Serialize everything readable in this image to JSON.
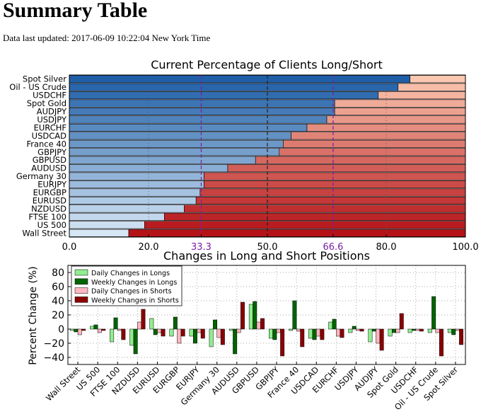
{
  "page": {
    "title": "Summary Table",
    "updated": "Data last updated: 2017-06-09 10:22:04 New York Time"
  },
  "chart_data": [
    {
      "type": "bar",
      "orientation": "horizontal-stacked",
      "title": "Current Percentage of Clients Long/Short",
      "categories": [
        "Spot Silver",
        "Oil - US Crude",
        "USDCHF",
        "Spot Gold",
        "AUDJPY",
        "USDJPY",
        "EURCHF",
        "USDCAD",
        "France 40",
        "GBPJPY",
        "GBPUSD",
        "AUDUSD",
        "Germany 30",
        "EURJPY",
        "EURGBP",
        "EURUSD",
        "NZDUSD",
        "FTSE 100",
        "US 500",
        "Wall Street"
      ],
      "long_values": [
        86,
        83,
        78,
        67,
        67,
        65,
        60,
        56,
        54,
        53,
        47,
        40,
        34,
        34,
        33,
        32,
        29,
        24,
        19,
        15
      ],
      "xlim": [
        0,
        100
      ],
      "xticks": [
        "0.0",
        "20.0",
        "33.3",
        "50.0",
        "66.6",
        "80.0",
        "100.0"
      ],
      "reference_lines": [
        33.3,
        50,
        66.6
      ],
      "grid": true
    },
    {
      "type": "bar",
      "title": "Changes in Long and Short Positions",
      "ylabel": "Percent Change (%)",
      "ylim": [
        -50,
        90
      ],
      "yticks": [
        "80",
        "60",
        "40",
        "20",
        "0",
        "−20",
        "−40"
      ],
      "categories": [
        "Wall Street",
        "US 500",
        "FTSE 100",
        "NZDUSD",
        "EURUSD",
        "EURGBP",
        "EURJPY",
        "Germany 30",
        "AUDUSD",
        "GBPUSD",
        "GBPJPY",
        "France 40",
        "USDCAD",
        "EURCHF",
        "USDJPY",
        "AUDJPY",
        "Spot Gold",
        "USDCHF",
        "Oil - US Crude",
        "Spot Silver"
      ],
      "legend_position": "upper-left",
      "series": [
        {
          "name": "Daily Changes in Longs",
          "color": "#90ee90",
          "values": [
            -2,
            4,
            -18,
            -23,
            15,
            -10,
            -10,
            -25,
            -2,
            35,
            -13,
            -2,
            -13,
            10,
            -5,
            -18,
            -10,
            -5,
            -5,
            -5
          ]
        },
        {
          "name": "Weekly Changes in Longs",
          "color": "#006400",
          "values": [
            -4,
            6,
            16,
            -35,
            -8,
            17,
            -20,
            13,
            -35,
            39,
            -15,
            40,
            -15,
            14,
            4,
            -3,
            -5,
            -2,
            46,
            -8
          ]
        },
        {
          "name": "Daily Changes in Shorts",
          "color": "#ffb6c1",
          "values": [
            -8,
            -5,
            -2,
            10,
            -5,
            -20,
            -5,
            -12,
            -5,
            10,
            -5,
            -3,
            -10,
            -10,
            -2,
            -20,
            -5,
            -2,
            -5,
            -2
          ]
        },
        {
          "name": "Weekly Changes in Shorts",
          "color": "#8b0000",
          "values": [
            -2,
            -2,
            -15,
            28,
            -10,
            -10,
            -13,
            -22,
            38,
            15,
            -38,
            -25,
            -15,
            -12,
            -3,
            -30,
            22,
            -3,
            -38,
            -22
          ]
        }
      ],
      "grid": true
    }
  ]
}
